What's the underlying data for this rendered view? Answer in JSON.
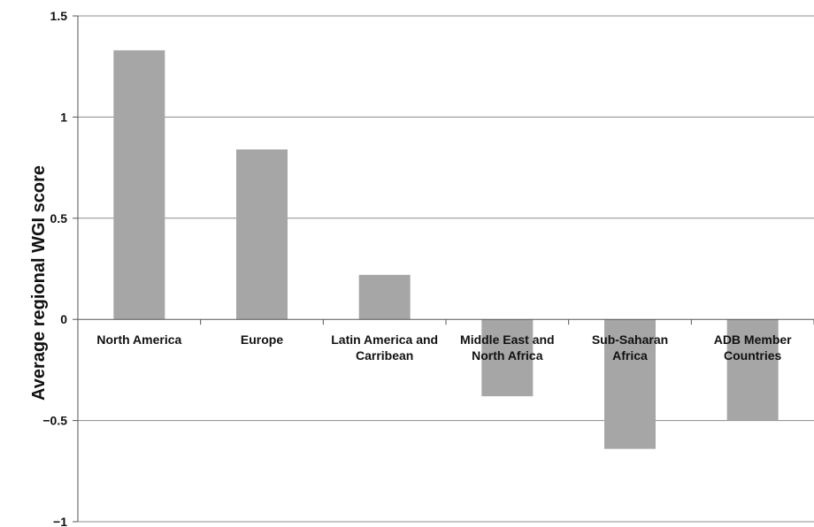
{
  "chart_data": {
    "type": "bar",
    "categories": [
      [
        "North America"
      ],
      [
        "Europe"
      ],
      [
        "Latin America and",
        "Carribean"
      ],
      [
        "Middle East and",
        "North Africa"
      ],
      [
        "Sub-Saharan",
        "Africa"
      ],
      [
        "ADB Member",
        "Countries"
      ]
    ],
    "values": [
      1.33,
      0.84,
      0.22,
      -0.38,
      -0.64,
      -0.5
    ],
    "title": "",
    "xlabel": "",
    "ylabel": "Average regional WGI score",
    "ylim": [
      -1,
      1.5
    ],
    "yticks": [
      1.5,
      1,
      0.5,
      0,
      -0.5,
      -1
    ],
    "ytick_labels": [
      "1.5",
      "1",
      "0.5",
      "0",
      "−0.5",
      "−1"
    ],
    "grid": true,
    "legend": "none",
    "colors": {
      "bar": "#a6a6a6",
      "grid": "#8c8c8c",
      "axis": "#555555"
    }
  }
}
